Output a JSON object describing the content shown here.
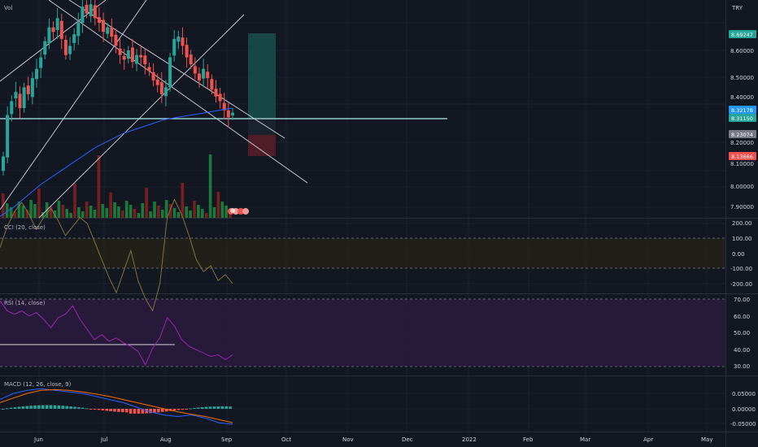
{
  "colors": {
    "background": "#131722",
    "grid": "#1e222d",
    "up": "#26a69a",
    "down": "#ef5350",
    "vol_up": "#1b7a3b",
    "vol_down": "#7a1f1f",
    "ema": "#2962ff",
    "cci": "#8b7e3a",
    "rsi": "#9c27b0",
    "rsi_band": "#2b1a3d",
    "macd": "#2962ff",
    "signal": "#ff6d00",
    "trendline": "#d1d4dc",
    "support": "#b2ebf2",
    "target_zone": "#19504a",
    "stop_zone": "#5a1f28",
    "tag_target": "#26a69a",
    "tag_entry": "#2196f3",
    "tag_last": "#26a69a",
    "tag_grey": "#787b86",
    "tag_stop": "#ef5350"
  },
  "top_label": "Vol",
  "currency": "TRY",
  "price_axis": {
    "ticks": [
      "8.70000",
      "8.60000",
      "8.50000",
      "8.40000",
      "8.20000",
      "8.10000",
      "8.00000",
      "7.90000"
    ],
    "ymin": 7.86,
    "ymax": 8.8
  },
  "price_tags": {
    "target": "8.69247",
    "entry": "8.32178",
    "last": "8.31150",
    "mid": "8.23074",
    "stop": "8.13666"
  },
  "time_axis": [
    "Jun",
    "Jul",
    "Aug",
    "Sep",
    "Oct",
    "Nov",
    "Dec",
    "2022",
    "Feb",
    "Mar",
    "Apr",
    "May"
  ],
  "panes": {
    "cci": {
      "label": "CCI (20, close)",
      "ticks": [
        "200.00",
        "100.00",
        "0.00",
        "-100.00",
        "-200.00"
      ]
    },
    "rsi": {
      "label": "RSI (14, close)",
      "ticks": [
        "70.00",
        "60.00",
        "50.00",
        "40.00",
        "30.00"
      ]
    },
    "macd": {
      "label": "MACD (12, 26, close, 9)",
      "ticks": [
        "0.05000",
        "0.00000",
        "-0.05000"
      ]
    }
  },
  "chart_data": {
    "type": "candlestick",
    "price_closes": [
      8.12,
      8.3,
      8.36,
      8.4,
      8.33,
      8.42,
      8.39,
      8.46,
      8.5,
      8.55,
      8.62,
      8.68,
      8.66,
      8.72,
      8.63,
      8.56,
      8.6,
      8.65,
      8.7,
      8.77,
      8.74,
      8.78,
      8.72,
      8.7,
      8.66,
      8.68,
      8.64,
      8.6,
      8.56,
      8.54,
      8.58,
      8.53,
      8.56,
      8.55,
      8.52,
      8.49,
      8.45,
      8.43,
      8.39,
      8.42,
      8.55,
      8.63,
      8.64,
      8.6,
      8.55,
      8.52,
      8.48,
      8.45,
      8.5,
      8.46,
      8.41,
      8.38,
      8.36,
      8.32,
      8.29,
      8.31
    ],
    "ema_approx": [
      7.86,
      7.9,
      7.95,
      8.0,
      8.04,
      8.08,
      8.12,
      8.16,
      8.19,
      8.22,
      8.24,
      8.26,
      8.28,
      8.29,
      8.3,
      8.31,
      8.32,
      8.33
    ],
    "cci_values": [
      20,
      90,
      140,
      170,
      130,
      80,
      120,
      150,
      110,
      60,
      90,
      120,
      100,
      40,
      -20,
      -80,
      -130,
      -60,
      10,
      -90,
      -150,
      -190,
      -100,
      120,
      180,
      130,
      60,
      -20,
      -60,
      -40,
      -90,
      -70,
      -100
    ],
    "rsi_values": [
      69,
      63,
      61,
      63,
      60,
      62,
      58,
      53,
      59,
      61,
      66,
      58,
      52,
      46,
      49,
      45,
      47,
      44,
      42,
      39,
      31,
      41,
      47,
      59,
      54,
      46,
      42,
      40,
      38,
      36,
      37,
      34,
      37
    ],
    "macd_values": [
      0.03,
      0.05,
      0.06,
      0.065,
      0.06,
      0.055,
      0.05,
      0.04,
      0.03,
      0.02,
      0.005,
      -0.01,
      -0.02,
      -0.025,
      -0.02,
      -0.03,
      -0.045,
      -0.05
    ],
    "signal_values": [
      0.02,
      0.035,
      0.05,
      0.06,
      0.062,
      0.06,
      0.055,
      0.048,
      0.04,
      0.03,
      0.02,
      0.01,
      0.0,
      -0.01,
      -0.018,
      -0.025,
      -0.035,
      -0.045
    ],
    "ylim": [
      7.86,
      8.8
    ]
  }
}
